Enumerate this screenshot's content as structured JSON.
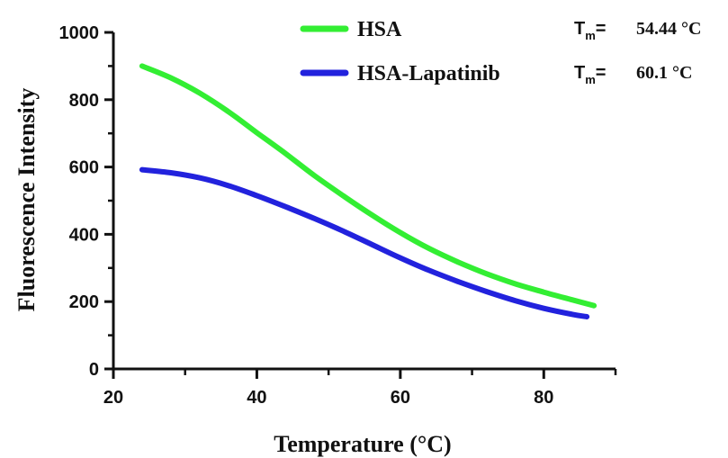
{
  "chart_data": {
    "type": "line",
    "xlabel": "Temperature (°C)",
    "ylabel": "Fluorescence Intensity",
    "xlim": [
      20,
      90
    ],
    "ylim": [
      0,
      1000
    ],
    "xticks": [
      20,
      40,
      60,
      80
    ],
    "yticks": [
      0,
      200,
      400,
      600,
      800,
      1000
    ],
    "grid": false,
    "legend_position": "top",
    "series": [
      {
        "name": "HSA",
        "color": "#33ee33",
        "tm_label": "T",
        "tm_sub": "m",
        "tm_eq": "=",
        "tm_value": "54.44 °C",
        "x": [
          24,
          28,
          32,
          36,
          40,
          44,
          48,
          52,
          56,
          60,
          64,
          68,
          72,
          76,
          80,
          84,
          87
        ],
        "values": [
          900,
          865,
          820,
          765,
          702,
          640,
          575,
          515,
          458,
          405,
          358,
          318,
          283,
          253,
          228,
          205,
          188
        ]
      },
      {
        "name": "HSA-Lapatinib",
        "color": "#2222dd",
        "tm_label": "T",
        "tm_sub": "m",
        "tm_eq": "=",
        "tm_value": "60.1 °C",
        "x": [
          24,
          28,
          32,
          36,
          40,
          44,
          48,
          52,
          56,
          60,
          64,
          68,
          72,
          76,
          80,
          84,
          86
        ],
        "values": [
          592,
          583,
          568,
          545,
          515,
          482,
          447,
          410,
          370,
          330,
          293,
          260,
          230,
          203,
          180,
          162,
          155
        ]
      }
    ]
  }
}
